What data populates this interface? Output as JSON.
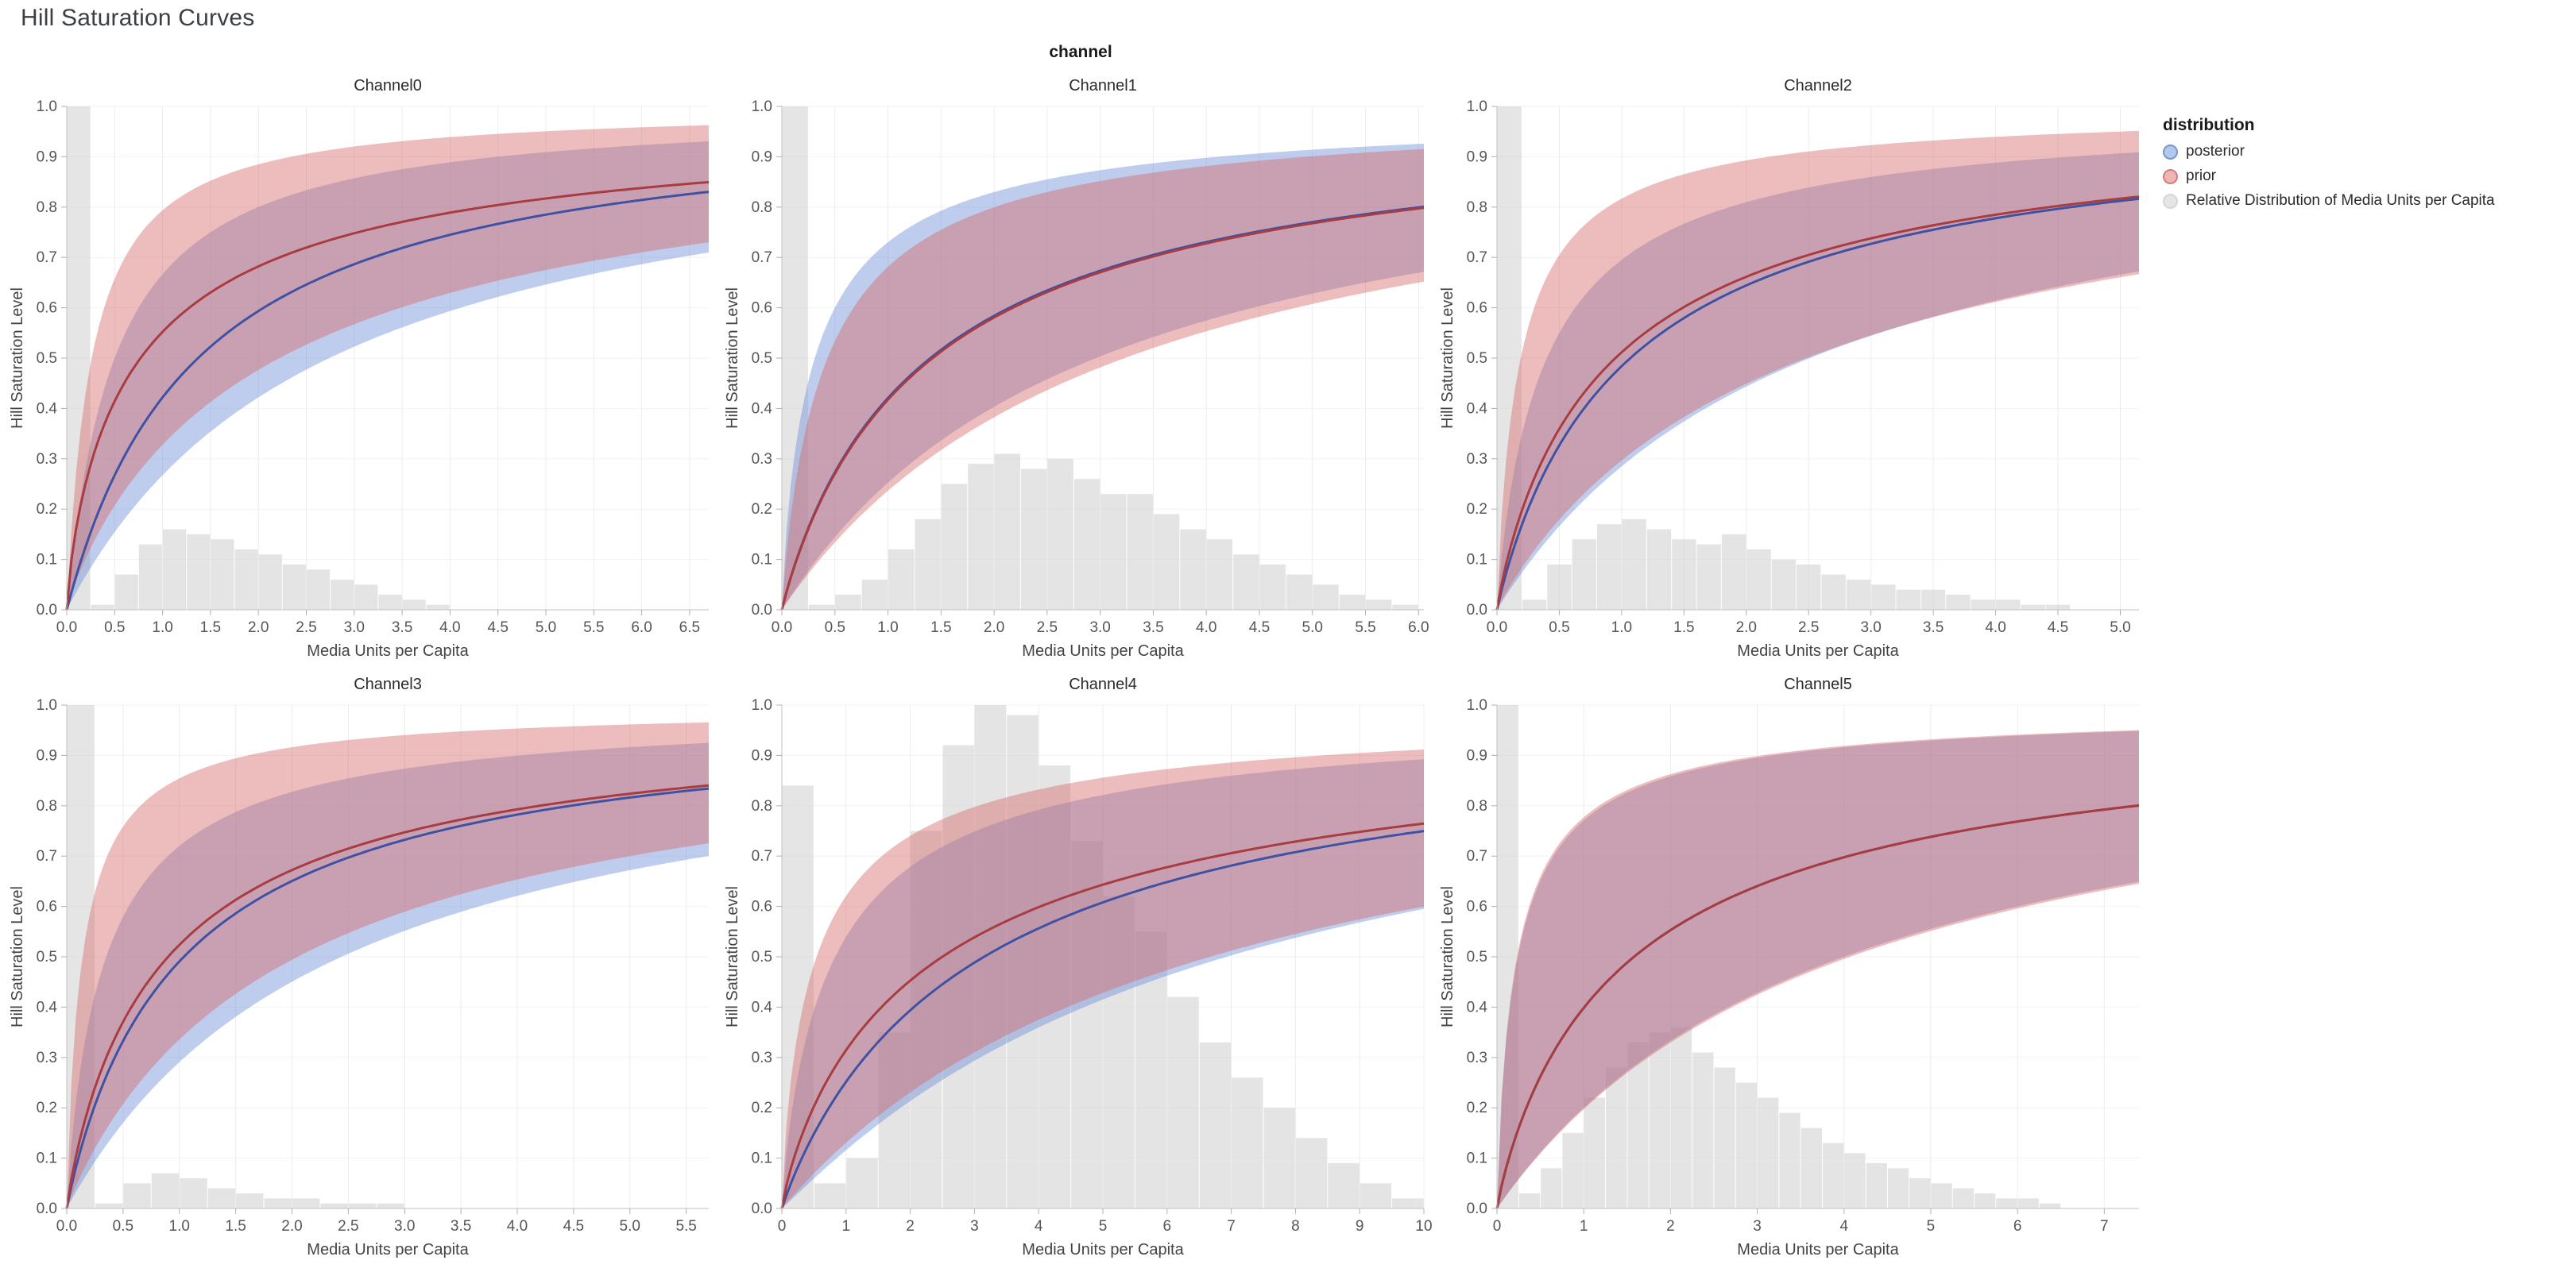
{
  "header": {
    "title": "Hill Saturation Curves",
    "facet_label": "channel"
  },
  "legend": {
    "title": "distribution",
    "items": [
      {
        "label": "posterior",
        "color": "#aac3ea",
        "stroke": "#6b8ac9"
      },
      {
        "label": "prior",
        "color": "#eeacac",
        "stroke": "#d36d6d"
      },
      {
        "label": "Relative Distribution of Media Units per Capita",
        "color": "#e3e3e3",
        "stroke": "#d2d2d2"
      }
    ]
  },
  "axes": {
    "y_label": "Hill Saturation Level",
    "x_label": "Media Units per Capita",
    "y_ticks": [
      "0.0",
      "0.1",
      "0.2",
      "0.3",
      "0.4",
      "0.5",
      "0.6",
      "0.7",
      "0.8",
      "0.9",
      "1.0"
    ],
    "ylim": [
      0,
      1
    ]
  },
  "colors": {
    "posterior_fill": "#6f8fd6",
    "posterior_line": "#3f51a3",
    "prior_fill": "#d66a6a",
    "prior_line": "#a83c40",
    "hist_fill": "#d3d3d3",
    "band_opacity": 0.45,
    "hist_opacity": 0.6
  },
  "chart_data": {
    "type": "line",
    "description": "Hill saturation curves per media channel: median line with credible band for posterior and prior, plus background histogram of media units per capita. Curves parameterized as y = x^s / (x^s + k^s).",
    "channels": [
      {
        "title": "Channel0",
        "x_max": 6.7,
        "x_ticks": [
          "0.0",
          "0.5",
          "1.0",
          "1.5",
          "2.0",
          "2.5",
          "3.0",
          "3.5",
          "4.0",
          "4.5",
          "5.0",
          "5.5",
          "6.0",
          "6.5"
        ],
        "posterior": {
          "median": {
            "k": 1.37,
            "s": 1.0,
            "y_at_xmax": 0.83
          },
          "upper": {
            "k": 0.5,
            "s": 1.0,
            "y_at_xmax": 0.93
          },
          "lower": {
            "k": 2.74,
            "s": 1.0,
            "y_at_xmax": 0.71
          }
        },
        "prior": {
          "median": {
            "k": 0.77,
            "s": 0.8,
            "y_at_xmax": 0.85
          },
          "upper": {
            "k": 0.26,
            "s": 1.0,
            "y_at_xmax": 0.96
          },
          "lower": {
            "k": 2.22,
            "s": 0.9,
            "y_at_xmax": 0.73
          }
        },
        "histogram": {
          "bin_width": 0.25,
          "heights": [
            1,
            0.01,
            0.07,
            0.13,
            0.16,
            0.15,
            0.14,
            0.12,
            0.11,
            0.09,
            0.08,
            0.06,
            0.05,
            0.03,
            0.02,
            0.01
          ]
        }
      },
      {
        "title": "Channel1",
        "x_max": 6.05,
        "x_ticks": [
          "0.0",
          "0.5",
          "1.0",
          "1.5",
          "2.0",
          "2.5",
          "3.0",
          "3.5",
          "4.0",
          "4.5",
          "5.0",
          "5.5",
          "6.0"
        ],
        "posterior": {
          "median": {
            "k": 1.4,
            "s": 0.95,
            "y_at_xmax": 0.8
          },
          "upper": {
            "k": 0.31,
            "s": 0.85,
            "y_at_xmax": 0.94
          },
          "lower": {
            "k": 2.96,
            "s": 1.0,
            "y_at_xmax": 0.67
          }
        },
        "prior": {
          "median": {
            "k": 1.42,
            "s": 0.95,
            "y_at_xmax": 0.795
          },
          "upper": {
            "k": 0.43,
            "s": 0.9,
            "y_at_xmax": 0.92
          },
          "lower": {
            "k": 3.23,
            "s": 1.0,
            "y_at_xmax": 0.65
          }
        },
        "histogram": {
          "bin_width": 0.25,
          "heights": [
            1,
            0.01,
            0.03,
            0.06,
            0.12,
            0.18,
            0.25,
            0.29,
            0.31,
            0.28,
            0.3,
            0.26,
            0.23,
            0.23,
            0.19,
            0.16,
            0.14,
            0.11,
            0.09,
            0.07,
            0.05,
            0.03,
            0.02,
            0.01
          ]
        }
      },
      {
        "title": "Channel2",
        "x_max": 5.15,
        "x_ticks": [
          "0.0",
          "0.5",
          "1.0",
          "1.5",
          "2.0",
          "2.5",
          "3.0",
          "3.5",
          "4.0",
          "4.5",
          "5.0"
        ],
        "posterior": {
          "median": {
            "k": 1.07,
            "s": 0.95,
            "y_at_xmax": 0.815
          },
          "upper": {
            "k": 0.4,
            "s": 0.9,
            "y_at_xmax": 0.91
          },
          "lower": {
            "k": 2.51,
            "s": 1.0,
            "y_at_xmax": 0.67
          }
        },
        "prior": {
          "median": {
            "k": 0.95,
            "s": 0.9,
            "y_at_xmax": 0.82
          },
          "upper": {
            "k": 0.19,
            "s": 0.9,
            "y_at_xmax": 0.95
          },
          "lower": {
            "k": 2.48,
            "s": 0.95,
            "y_at_xmax": 0.665
          }
        },
        "histogram": {
          "bin_width": 0.2,
          "heights": [
            1,
            0.02,
            0.09,
            0.14,
            0.17,
            0.18,
            0.16,
            0.14,
            0.13,
            0.15,
            0.12,
            0.1,
            0.09,
            0.07,
            0.06,
            0.05,
            0.04,
            0.04,
            0.03,
            0.02,
            0.02,
            0.01,
            0.01
          ]
        }
      },
      {
        "title": "Channel3",
        "x_max": 5.7,
        "x_ticks": [
          "0.0",
          "0.5",
          "1.0",
          "1.5",
          "2.0",
          "2.5",
          "3.0",
          "3.5",
          "4.0",
          "4.5",
          "5.0",
          "5.5"
        ],
        "posterior": {
          "median": {
            "k": 1.04,
            "s": 0.95,
            "y_at_xmax": 0.835
          },
          "upper": {
            "k": 0.35,
            "s": 0.9,
            "y_at_xmax": 0.94
          },
          "lower": {
            "k": 2.44,
            "s": 1.0,
            "y_at_xmax": 0.7
          }
        },
        "prior": {
          "median": {
            "k": 0.9,
            "s": 0.9,
            "y_at_xmax": 0.84
          },
          "upper": {
            "k": 0.14,
            "s": 0.9,
            "y_at_xmax": 0.965
          },
          "lower": {
            "k": 2.05,
            "s": 0.95,
            "y_at_xmax": 0.725
          }
        },
        "histogram": {
          "bin_width": 0.25,
          "heights": [
            1,
            0.01,
            0.05,
            0.07,
            0.06,
            0.04,
            0.03,
            0.02,
            0.02,
            0.01,
            0.01,
            0.01
          ]
        }
      },
      {
        "title": "Channel4",
        "x_max": 10,
        "x_ticks": [
          "0",
          "1",
          "2",
          "3",
          "4",
          "5",
          "6",
          "7",
          "8",
          "9",
          "10"
        ],
        "posterior": {
          "median": {
            "k": 3.15,
            "s": 0.95,
            "y_at_xmax": 0.75
          },
          "upper": {
            "k": 0.83,
            "s": 0.85,
            "y_at_xmax": 0.89
          },
          "lower": {
            "k": 6.93,
            "s": 1.05,
            "y_at_xmax": 0.595
          }
        },
        "prior": {
          "median": {
            "k": 2.5,
            "s": 0.85,
            "y_at_xmax": 0.765
          },
          "upper": {
            "k": 0.54,
            "s": 0.8,
            "y_at_xmax": 0.91
          },
          "lower": {
            "k": 6.67,
            "s": 1.0,
            "y_at_xmax": 0.6
          }
        },
        "histogram": {
          "bin_width": 0.5,
          "heights": [
            0.84,
            0.05,
            0.1,
            0.35,
            0.75,
            0.92,
            1.0,
            0.98,
            0.88,
            0.73,
            0.62,
            0.55,
            0.42,
            0.33,
            0.26,
            0.2,
            0.14,
            0.09,
            0.05,
            0.02
          ]
        }
      },
      {
        "title": "Channel5",
        "x_max": 7.4,
        "x_ticks": [
          "0",
          "1",
          "2",
          "3",
          "4",
          "5",
          "6",
          "7"
        ],
        "posterior": {
          "median": {
            "k": 1.58,
            "s": 0.9,
            "y_at_xmax": 0.8
          },
          "upper": {
            "k": 0.24,
            "s": 0.85,
            "y_at_xmax": 0.945
          },
          "lower": {
            "k": 4.0,
            "s": 1.0,
            "y_at_xmax": 0.65
          }
        },
        "prior": {
          "median": {
            "k": 1.58,
            "s": 0.9,
            "y_at_xmax": 0.8
          },
          "upper": {
            "k": 0.23,
            "s": 0.85,
            "y_at_xmax": 0.95
          },
          "lower": {
            "k": 4.07,
            "s": 1.0,
            "y_at_xmax": 0.645
          }
        },
        "histogram": {
          "bin_width": 0.25,
          "heights": [
            1,
            0.03,
            0.08,
            0.15,
            0.22,
            0.28,
            0.33,
            0.35,
            0.36,
            0.31,
            0.28,
            0.25,
            0.22,
            0.19,
            0.16,
            0.13,
            0.11,
            0.09,
            0.08,
            0.06,
            0.05,
            0.04,
            0.03,
            0.02,
            0.02,
            0.01
          ]
        }
      }
    ]
  }
}
